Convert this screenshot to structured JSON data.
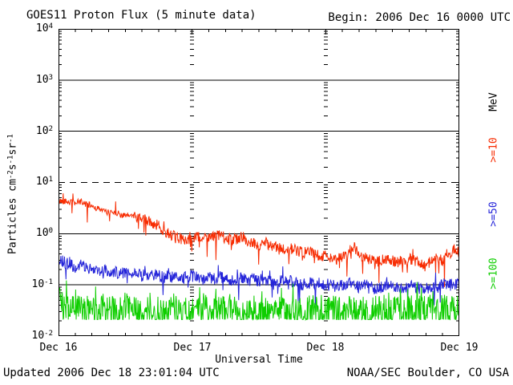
{
  "header": {
    "title": "GOES11 Proton Flux (5 minute data)",
    "begin_label": "Begin: 2006 Dec 16 0000 UTC"
  },
  "footer": {
    "updated": "Updated 2006 Dec 18 23:01:04 UTC",
    "source": "NOAA/SEC Boulder, CO USA"
  },
  "chart_data": {
    "type": "line",
    "title": "GOES11 Proton Flux (5 minute data)",
    "xlabel": "Universal Time",
    "ylabel": "Particles cm-2 s-1 sr-1",
    "ylabel_parts": {
      "p1": "Particles cm",
      "s1": "-2",
      "p2": "s",
      "s2": "-1",
      "p3": "sr",
      "s3": "-1"
    },
    "x_range_hours": [
      0,
      72
    ],
    "x_tick_labels": [
      "Dec 16",
      "Dec 17",
      "Dec 18",
      "Dec 19"
    ],
    "x_minor_tick_hours": 3,
    "y_scale": "log",
    "ylim": [
      0.01,
      10000
    ],
    "y_tick_labels": [
      {
        "base": "10",
        "exp": "4"
      },
      {
        "base": "10",
        "exp": "3"
      },
      {
        "base": "10",
        "exp": "2"
      },
      {
        "base": "10",
        "exp": "1"
      },
      {
        "base": "10",
        "exp": "0"
      },
      {
        "base": "10",
        "exp": "-1"
      },
      {
        "base": "10",
        "exp": "-2"
      }
    ],
    "gridlines_solid": [
      1000,
      100,
      1,
      0.1
    ],
    "threshold_dashed": 10,
    "sample_interval_minutes": 5,
    "legend": {
      "unit": "MeV",
      "items": [
        {
          "label": ">=10",
          "color": "#f72c02"
        },
        {
          "label": ">=50",
          "color": "#2424d9"
        },
        {
          "label": ">=100",
          "color": "#0fce00"
        }
      ]
    },
    "series": [
      {
        "name": ">=10 MeV",
        "color": "#f72c02",
        "hourly": [
          4.3,
          4.4,
          4.1,
          4.0,
          4.2,
          3.8,
          3.5,
          3.1,
          2.8,
          2.6,
          2.7,
          2.4,
          2.2,
          2.3,
          2.1,
          1.9,
          1.8,
          1.6,
          1.4,
          1.15,
          1.0,
          0.85,
          0.8,
          0.75,
          0.8,
          0.85,
          0.8,
          0.9,
          0.85,
          0.95,
          0.8,
          0.75,
          0.8,
          0.9,
          0.7,
          0.65,
          0.6,
          0.68,
          0.6,
          0.55,
          0.5,
          0.45,
          0.52,
          0.45,
          0.42,
          0.46,
          0.4,
          0.36,
          0.38,
          0.34,
          0.3,
          0.36,
          0.42,
          0.55,
          0.4,
          0.34,
          0.3,
          0.28,
          0.3,
          0.33,
          0.3,
          0.28,
          0.3,
          0.32,
          0.3,
          0.27,
          0.24,
          0.3,
          0.34,
          0.3,
          0.36,
          0.5,
          0.42
        ],
        "noise_dex": 0.11,
        "tight_until": 14,
        "tight_factor": 0.55,
        "dip_chance": 0.05,
        "dip_dex": 0.45,
        "spike_chance": 0.03,
        "spike_dex": 0.18,
        "min": 0.08
      },
      {
        "name": ">=50 MeV",
        "color": "#2424d9",
        "hourly": [
          0.3,
          0.28,
          0.25,
          0.22,
          0.24,
          0.22,
          0.2,
          0.18,
          0.2,
          0.18,
          0.17,
          0.18,
          0.17,
          0.16,
          0.18,
          0.17,
          0.15,
          0.16,
          0.15,
          0.14,
          0.15,
          0.14,
          0.13,
          0.14,
          0.15,
          0.14,
          0.13,
          0.14,
          0.13,
          0.14,
          0.13,
          0.12,
          0.13,
          0.14,
          0.12,
          0.13,
          0.12,
          0.13,
          0.12,
          0.11,
          0.12,
          0.11,
          0.12,
          0.11,
          0.1,
          0.11,
          0.1,
          0.11,
          0.1,
          0.1,
          0.09,
          0.1,
          0.11,
          0.1,
          0.09,
          0.1,
          0.09,
          0.085,
          0.09,
          0.1,
          0.09,
          0.085,
          0.09,
          0.1,
          0.09,
          0.085,
          0.09,
          0.085,
          0.09,
          0.1,
          0.11,
          0.1,
          0.11
        ],
        "noise_dex": 0.12,
        "tight_until": 0,
        "tight_factor": 1,
        "dip_chance": 0.05,
        "dip_dex": 0.35,
        "spike_chance": 0.04,
        "spike_dex": 0.2,
        "min": 0.04
      },
      {
        "name": ">=100 MeV",
        "color": "#0fce00",
        "hourly": [
          0.05,
          0.04,
          0.035,
          0.032,
          0.035,
          0.032,
          0.03,
          0.032,
          0.035,
          0.03,
          0.032,
          0.03,
          0.035,
          0.032,
          0.03,
          0.032,
          0.035,
          0.03,
          0.032,
          0.03,
          0.032,
          0.035,
          0.03,
          0.032,
          0.03,
          0.032,
          0.035,
          0.032,
          0.03,
          0.032,
          0.03,
          0.035,
          0.032,
          0.03,
          0.032,
          0.035,
          0.03,
          0.032,
          0.03,
          0.032,
          0.035,
          0.03,
          0.032,
          0.035,
          0.03,
          0.032,
          0.03,
          0.032,
          0.035,
          0.03,
          0.032,
          0.03,
          0.035,
          0.032,
          0.03,
          0.032,
          0.03,
          0.032,
          0.035,
          0.03,
          0.032,
          0.035,
          0.03,
          0.032,
          0.03,
          0.032,
          0.035,
          0.032,
          0.03,
          0.032,
          0.035,
          0.032,
          0.035
        ],
        "noise_dex": 0.3,
        "tight_until": 0,
        "tight_factor": 1,
        "dip_chance": 0.12,
        "dip_dex": 0.4,
        "spike_chance": 0.05,
        "spike_dex": 0.3,
        "min": 0.021
      }
    ]
  }
}
